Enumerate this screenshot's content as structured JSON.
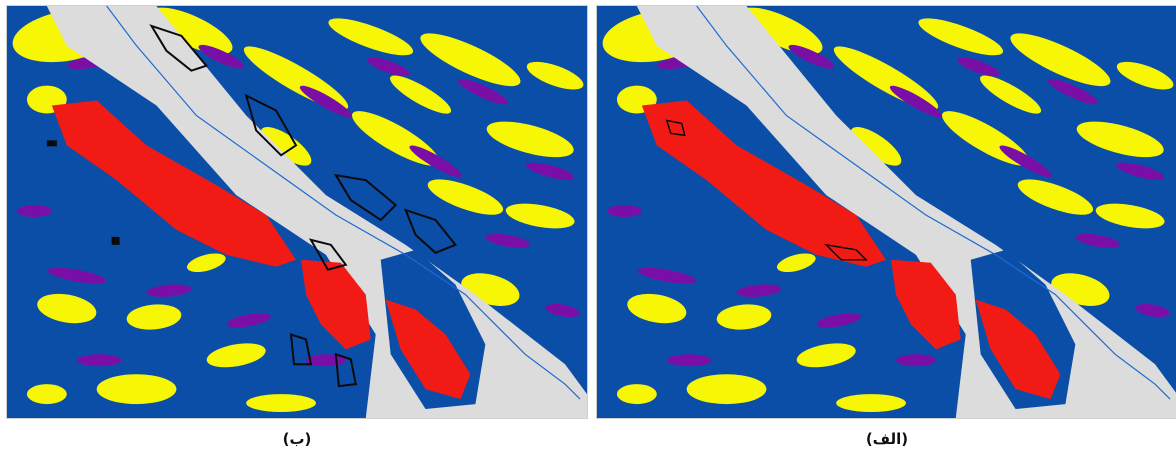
{
  "colors": {
    "blue": "#0a4ea8",
    "yellow": "#f7f705",
    "purple": "#7a0fa8",
    "gray": "#dcdcdc",
    "red": "#f21a14",
    "black": "#0a0a0a",
    "river": "#1d6ad0"
  },
  "panels": [
    {
      "id": "b",
      "caption": "(ب)",
      "black_outlines": true
    },
    {
      "id": "a",
      "caption": "(الف)",
      "black_outlines": false
    }
  ]
}
